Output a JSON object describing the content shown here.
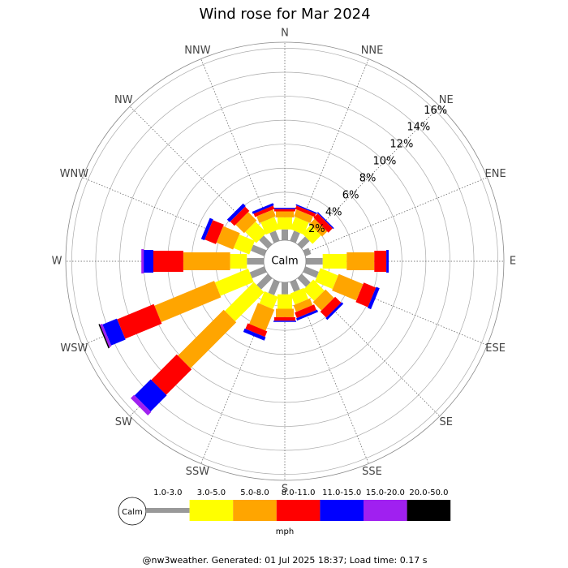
{
  "chart_data": {
    "type": "windrose",
    "title": "Wind rose for Mar 2024",
    "directions": [
      "N",
      "NNE",
      "NE",
      "ENE",
      "E",
      "ESE",
      "SE",
      "SSE",
      "S",
      "SSW",
      "SW",
      "WSW",
      "W",
      "WNW",
      "NW",
      "NNW"
    ],
    "series": [
      {
        "name": "1.0-3.0",
        "color": "#999999",
        "values": [
          0.9,
          0.9,
          0.9,
          0.5,
          1.4,
          1.2,
          1.0,
          0.9,
          1.0,
          1.2,
          1.3,
          1.3,
          1.4,
          1.2,
          1.0,
          0.9
        ]
      },
      {
        "name": "3.0-5.0",
        "color": "#ffff00",
        "values": [
          1.0,
          1.1,
          1.0,
          0,
          2.0,
          1.6,
          1.3,
          1.0,
          1.2,
          1.1,
          3.4,
          3.0,
          1.4,
          1.4,
          1.3,
          1.1
        ]
      },
      {
        "name": "5.0-8.0",
        "color": "#ffa500",
        "values": [
          0.5,
          0.6,
          0.6,
          0,
          2.3,
          2.2,
          1.0,
          0.6,
          0.7,
          1.9,
          5.4,
          5.4,
          3.9,
          1.5,
          1.0,
          0.6
        ]
      },
      {
        "name": "8.0-11.0",
        "color": "#ff0000",
        "values": [
          0.2,
          0.3,
          0.5,
          0,
          1.0,
          1.1,
          0.7,
          0.5,
          0.3,
          0.5,
          3.0,
          3.3,
          2.5,
          1.0,
          0.5,
          0.3
        ]
      },
      {
        "name": "11.0-15.0",
        "color": "#0000ff",
        "values": [
          0.1,
          0.1,
          0.1,
          0,
          0.2,
          0.3,
          0.2,
          0.2,
          0.1,
          0.3,
          1.9,
          1.3,
          0.8,
          0.3,
          0.3,
          0.2
        ]
      },
      {
        "name": "15.0-20.0",
        "color": "#a020f0",
        "values": [
          0,
          0,
          0,
          0,
          0,
          0,
          0,
          0,
          0,
          0,
          0.4,
          0.2,
          0.2,
          0,
          0,
          0
        ]
      },
      {
        "name": "20.0-50.0",
        "color": "#000000",
        "values": [
          0,
          0,
          0,
          0,
          0,
          0,
          0,
          0,
          0,
          0,
          0,
          0.1,
          0,
          0,
          0,
          0
        ]
      }
    ],
    "rlim": [
      0,
      16.5
    ],
    "rticks": [
      {
        "value": 2,
        "label": "2%"
      },
      {
        "value": 4,
        "label": "4%"
      },
      {
        "value": 6,
        "label": "6%"
      },
      {
        "value": 8,
        "label": "8%"
      },
      {
        "value": 10,
        "label": "10%"
      },
      {
        "value": 12,
        "label": "12%"
      },
      {
        "value": 14,
        "label": "14%"
      },
      {
        "value": 16,
        "label": "16%"
      }
    ],
    "calm_label": "Calm",
    "unit": "mph",
    "footer": "@nw3weather. Generated: 01 Jul 2025 18:37; Load time: 0.17 s"
  }
}
